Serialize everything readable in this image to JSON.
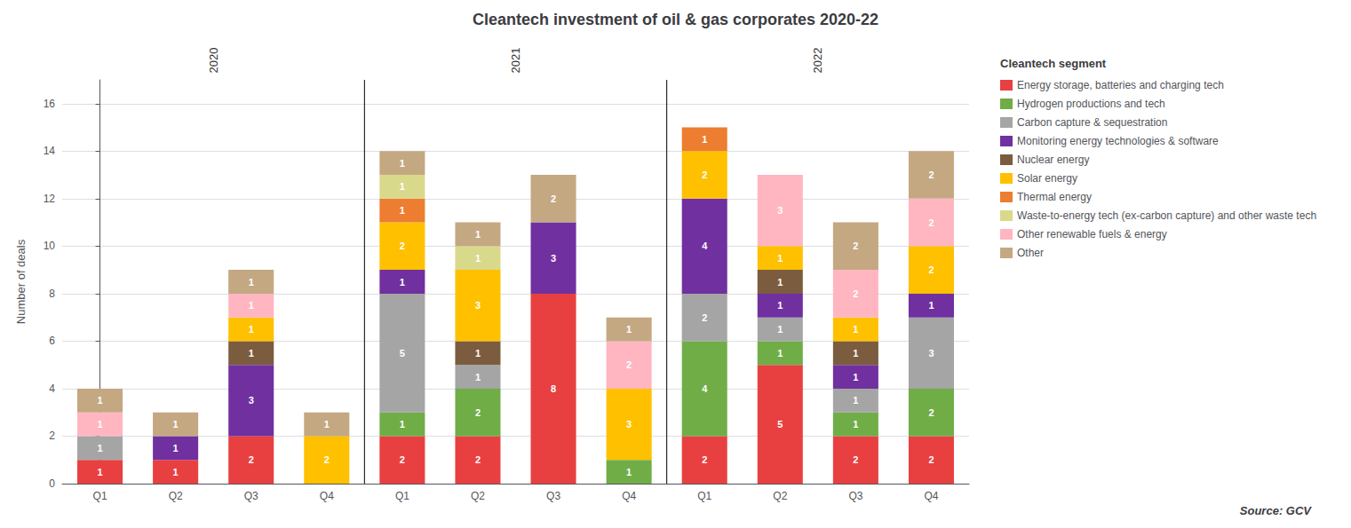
{
  "chart_data": {
    "type": "bar",
    "title": "Cleantech investment of oil & gas corporates 2020-22",
    "ylabel": "Number of deals",
    "categories": [
      "Q1",
      "Q2",
      "Q3",
      "Q4",
      "Q1",
      "Q2",
      "Q3",
      "Q4",
      "Q1",
      "Q2",
      "Q3",
      "Q4"
    ],
    "series": [
      {
        "name": "Energy storage, batteries and charging tech",
        "color": "#e84040",
        "values": [
          1,
          1,
          2,
          0,
          2,
          2,
          8,
          0,
          2,
          5,
          2,
          2
        ]
      },
      {
        "name": "Hydrogen productions and tech",
        "color": "#70ad47",
        "values": [
          0,
          0,
          0,
          0,
          1,
          2,
          0,
          1,
          4,
          1,
          1,
          2
        ]
      },
      {
        "name": "Carbon capture & sequestration",
        "color": "#a5a5a5",
        "values": [
          1,
          0,
          0,
          0,
          5,
          1,
          0,
          0,
          2,
          1,
          1,
          3
        ]
      },
      {
        "name": "Monitoring energy technologies & software",
        "color": "#7030a0",
        "values": [
          0,
          1,
          3,
          0,
          1,
          0,
          3,
          0,
          4,
          1,
          1,
          1
        ]
      },
      {
        "name": "Nuclear energy",
        "color": "#7b5c3f",
        "values": [
          0,
          0,
          1,
          0,
          0,
          1,
          0,
          0,
          0,
          1,
          1,
          0
        ]
      },
      {
        "name": "Solar energy",
        "color": "#ffc000",
        "values": [
          0,
          0,
          1,
          2,
          2,
          3,
          0,
          3,
          2,
          1,
          1,
          2
        ]
      },
      {
        "name": "Thermal energy",
        "color": "#ed7d31",
        "values": [
          0,
          0,
          0,
          0,
          1,
          0,
          0,
          0,
          1,
          0,
          0,
          0
        ]
      },
      {
        "name": "Waste-to-energy tech (ex-carbon capture) and other waste tech",
        "color": "#d9d98c",
        "values": [
          0,
          0,
          0,
          0,
          1,
          1,
          0,
          0,
          0,
          0,
          0,
          0
        ]
      },
      {
        "name": "Other renewable fuels & energy",
        "color": "#ffb6c1",
        "values": [
          1,
          0,
          1,
          0,
          0,
          0,
          0,
          2,
          0,
          3,
          2,
          2
        ]
      },
      {
        "name": "Other",
        "color": "#c4a882",
        "values": [
          1,
          1,
          1,
          1,
          1,
          1,
          2,
          1,
          0,
          0,
          2,
          2
        ]
      }
    ],
    "stacked": true,
    "data_labels": true,
    "ylim": [
      0,
      17
    ],
    "yticks": [
      0,
      2,
      4,
      6,
      8,
      10,
      12,
      14,
      16
    ],
    "grid": true,
    "legend": "right",
    "legend_title": "Cleantech segment",
    "annotations": [
      {
        "text": "2020",
        "x": 1.5
      },
      {
        "text": "2021",
        "x": 5.5
      },
      {
        "text": "2022",
        "x": 9.5
      }
    ],
    "vlines": [
      3.5,
      7.5
    ],
    "source": "Source: GCV"
  }
}
